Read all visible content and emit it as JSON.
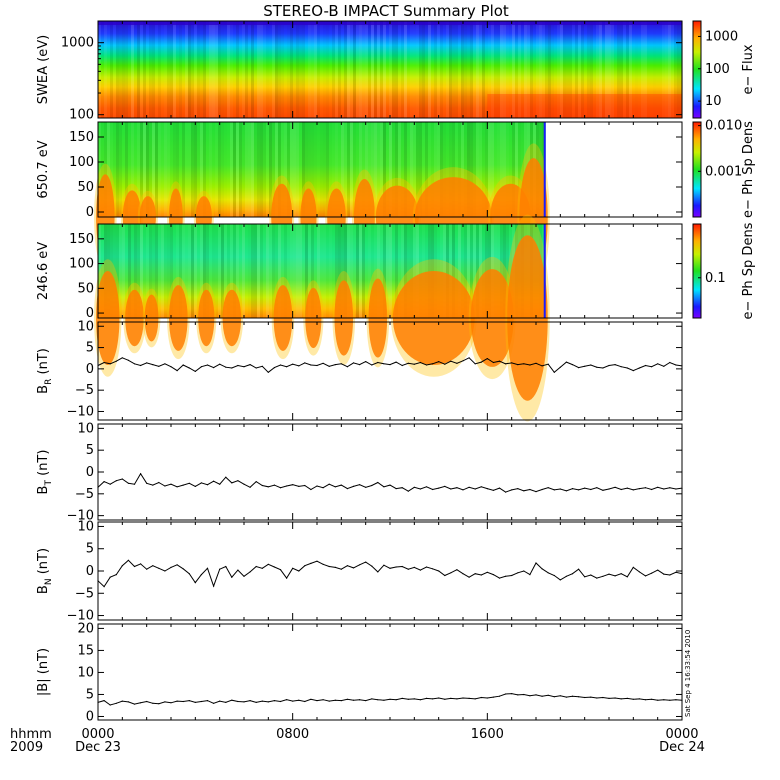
{
  "chart_data": {
    "type": "multi-panel",
    "title": "STEREO-B IMPACT Summary Plot",
    "time_axis": {
      "label_left": [
        "hhmm",
        "2009"
      ],
      "ticks": [
        {
          "hour": 0,
          "top": "0000",
          "bottom": "Dec 23"
        },
        {
          "hour": 8,
          "top": "0800",
          "bottom": ""
        },
        {
          "hour": 16,
          "top": "1600",
          "bottom": ""
        },
        {
          "hour": 24,
          "top": "0000",
          "bottom": "Dec 24"
        }
      ],
      "range_hours": [
        0,
        24
      ],
      "minor_ticks_per_interval": 8
    },
    "vertical_annotation": "Sat Sep  4 16:33:54 2010",
    "spectrograms": [
      {
        "ylabel": "SWEA (eV)",
        "scale": "log",
        "ylim": [
          90,
          2000
        ],
        "yticks": [
          {
            "value": 100,
            "label": "100"
          },
          {
            "value": 1000,
            "label": "1000"
          }
        ],
        "colorbar_label": "e− Flux",
        "colorbar_scale": "log",
        "colorbar_range": [
          3,
          3000
        ],
        "colorbar_ticks": [
          {
            "value": 10,
            "label": "10"
          },
          {
            "value": 100,
            "label": "100"
          },
          {
            "value": 1000,
            "label": "1000"
          }
        ],
        "data_end_hour": 24
      },
      {
        "ylabel": "650.7 eV",
        "scale": "linear",
        "ylim": [
          -10,
          180
        ],
        "yticks": [
          {
            "value": 0,
            "label": "0"
          },
          {
            "value": 50,
            "label": "50"
          },
          {
            "value": 100,
            "label": "100"
          },
          {
            "value": 150,
            "label": "150"
          }
        ],
        "colorbar_label": "e− Ph Sp Dens",
        "colorbar_scale": "log",
        "colorbar_range": [
          0.0001,
          0.012
        ],
        "colorbar_ticks": [
          {
            "value": 0.001,
            "label": "0.001"
          },
          {
            "value": 0.01,
            "label": "0.010"
          }
        ],
        "data_end_hour": 18.4
      },
      {
        "ylabel": "246.6 eV",
        "scale": "linear",
        "ylim": [
          -10,
          180
        ],
        "yticks": [
          {
            "value": 0,
            "label": "0"
          },
          {
            "value": 50,
            "label": "50"
          },
          {
            "value": 100,
            "label": "100"
          },
          {
            "value": 150,
            "label": "150"
          }
        ],
        "colorbar_label": "e− Ph Sp Dens",
        "colorbar_scale": "log",
        "colorbar_range": [
          0.03,
          0.5
        ],
        "colorbar_ticks": [
          {
            "value": 0.1,
            "label": "0.1"
          }
        ],
        "data_end_hour": 18.4
      }
    ],
    "series": [
      {
        "ylabel": "B_R (nT)",
        "ylabel_main": "B",
        "ylabel_sub": "R",
        "ylabel_unit": "(nT)",
        "ylim": [
          -12,
          11
        ],
        "yticks": [
          {
            "value": -10,
            "label": "−10"
          },
          {
            "value": -5,
            "label": "−5"
          },
          {
            "value": 0,
            "label": "0"
          },
          {
            "value": 5,
            "label": "5"
          },
          {
            "value": 10,
            "label": "10"
          }
        ],
        "x": [
          0,
          0.25,
          0.5,
          0.75,
          1,
          1.25,
          1.5,
          1.75,
          2,
          2.25,
          2.5,
          2.75,
          3,
          3.25,
          3.5,
          3.75,
          4,
          4.25,
          4.5,
          4.75,
          5,
          5.25,
          5.5,
          5.75,
          6,
          6.25,
          6.5,
          6.75,
          7,
          7.25,
          7.5,
          7.75,
          8,
          8.25,
          8.5,
          8.75,
          9,
          9.25,
          9.5,
          9.75,
          10,
          10.25,
          10.5,
          10.75,
          11,
          11.25,
          11.5,
          11.75,
          12,
          12.25,
          12.5,
          12.75,
          13,
          13.25,
          13.5,
          13.75,
          14,
          14.25,
          14.5,
          14.75,
          15,
          15.25,
          15.5,
          15.75,
          16,
          16.25,
          16.5,
          16.75,
          17,
          17.25,
          17.5,
          17.75,
          18,
          18.25,
          18.5,
          18.75,
          19,
          19.25,
          19.5,
          19.75,
          20,
          20.25,
          20.5,
          20.75,
          21,
          21.25,
          21.5,
          21.75,
          22,
          22.25,
          22.5,
          22.75,
          23,
          23.25,
          23.5,
          23.75,
          24
        ],
        "values": [
          0.8,
          1.5,
          1.2,
          1.8,
          2.6,
          2.0,
          1.2,
          0.8,
          1.4,
          1.0,
          0.6,
          1.2,
          0.5,
          -0.4,
          0.9,
          0.2,
          -0.6,
          0.5,
          0.9,
          0.3,
          1.1,
          0.4,
          0.2,
          0.8,
          0.5,
          1.0,
          0.2,
          0.6,
          -0.8,
          0.3,
          0.9,
          0.5,
          1.1,
          0.7,
          1.4,
          0.9,
          0.8,
          1.3,
          0.6,
          1.0,
          1.2,
          0.5,
          1.4,
          1.0,
          1.7,
          0.9,
          1.5,
          1.2,
          1.0,
          1.6,
          0.8,
          1.3,
          1.1,
          1.5,
          0.9,
          1.2,
          1.7,
          1.1,
          1.8,
          1.3,
          1.9,
          2.6,
          1.2,
          1.6,
          2.4,
          1.5,
          1.8,
          1.2,
          1.4,
          1.0,
          1.2,
          0.9,
          1.3,
          0.7,
          1.1,
          -0.8,
          0.4,
          1.6,
          1.0,
          0.3,
          0.6,
          0.9,
          0.4,
          0.2,
          0.8,
          1.0,
          0.5,
          0.2,
          -0.4,
          0.2,
          0.8,
          0.5,
          1.2,
          0.6,
          1.5,
          0.9,
          0.7
        ]
      },
      {
        "ylabel": "B_T (nT)",
        "ylabel_main": "B",
        "ylabel_sub": "T",
        "ylabel_unit": "(nT)",
        "ylim": [
          -11,
          11
        ],
        "yticks": [
          {
            "value": -10,
            "label": "−10"
          },
          {
            "value": -5,
            "label": "−5"
          },
          {
            "value": 0,
            "label": "0"
          },
          {
            "value": 5,
            "label": "5"
          },
          {
            "value": 10,
            "label": "10"
          }
        ],
        "x": [
          0,
          0.25,
          0.5,
          0.75,
          1,
          1.25,
          1.5,
          1.75,
          2,
          2.25,
          2.5,
          2.75,
          3,
          3.25,
          3.5,
          3.75,
          4,
          4.25,
          4.5,
          4.75,
          5,
          5.25,
          5.5,
          5.75,
          6,
          6.25,
          6.5,
          6.75,
          7,
          7.25,
          7.5,
          7.75,
          8,
          8.25,
          8.5,
          8.75,
          9,
          9.25,
          9.5,
          9.75,
          10,
          10.25,
          10.5,
          10.75,
          11,
          11.25,
          11.5,
          11.75,
          12,
          12.25,
          12.5,
          12.75,
          13,
          13.25,
          13.5,
          13.75,
          14,
          14.25,
          14.5,
          14.75,
          15,
          15.25,
          15.5,
          15.75,
          16,
          16.25,
          16.5,
          16.75,
          17,
          17.25,
          17.5,
          17.75,
          18,
          18.25,
          18.5,
          18.75,
          19,
          19.25,
          19.5,
          19.75,
          20,
          20.25,
          20.5,
          20.75,
          21,
          21.25,
          21.5,
          21.75,
          22,
          22.25,
          22.5,
          22.75,
          23,
          23.25,
          23.5,
          23.75,
          24
        ],
        "values": [
          -3.5,
          -2.2,
          -2.8,
          -2.0,
          -1.6,
          -2.6,
          -2.8,
          -0.4,
          -2.6,
          -3.0,
          -2.4,
          -3.2,
          -2.8,
          -3.4,
          -3.0,
          -2.6,
          -3.3,
          -2.5,
          -2.9,
          -2.1,
          -2.8,
          -1.2,
          -2.5,
          -2.0,
          -2.8,
          -3.5,
          -2.2,
          -3.1,
          -3.4,
          -3.0,
          -3.6,
          -3.2,
          -2.9,
          -3.3,
          -3.1,
          -4.0,
          -3.2,
          -3.6,
          -2.8,
          -3.4,
          -3.0,
          -3.8,
          -3.3,
          -2.9,
          -3.5,
          -3.1,
          -2.4,
          -3.4,
          -3.0,
          -3.8,
          -3.6,
          -4.4,
          -3.5,
          -3.9,
          -3.4,
          -4.0,
          -3.7,
          -3.3,
          -3.9,
          -3.6,
          -4.1,
          -3.5,
          -3.9,
          -3.4,
          -3.8,
          -4.2,
          -3.7,
          -4.6,
          -4.1,
          -3.8,
          -4.3,
          -4.0,
          -4.5,
          -4.0,
          -3.6,
          -4.1,
          -3.9,
          -4.3,
          -3.8,
          -4.1,
          -3.7,
          -4.0,
          -3.6,
          -4.2,
          -3.9,
          -3.5,
          -4.0,
          -3.7,
          -4.1,
          -3.8,
          -3.6,
          -4.0,
          -3.5,
          -3.9,
          -3.6,
          -3.9,
          -3.7
        ]
      },
      {
        "ylabel": "B_N (nT)",
        "ylabel_main": "B",
        "ylabel_sub": "N",
        "ylabel_unit": "(nT)",
        "ylim": [
          -11,
          11
        ],
        "yticks": [
          {
            "value": -10,
            "label": "−10"
          },
          {
            "value": -5,
            "label": "−5"
          },
          {
            "value": 0,
            "label": "0"
          },
          {
            "value": 5,
            "label": "5"
          },
          {
            "value": 10,
            "label": "10"
          }
        ],
        "x": [
          0,
          0.25,
          0.5,
          0.75,
          1,
          1.25,
          1.5,
          1.75,
          2,
          2.25,
          2.5,
          2.75,
          3,
          3.25,
          3.5,
          3.75,
          4,
          4.25,
          4.5,
          4.75,
          5,
          5.25,
          5.5,
          5.75,
          6,
          6.25,
          6.5,
          6.75,
          7,
          7.25,
          7.5,
          7.75,
          8,
          8.25,
          8.5,
          8.75,
          9,
          9.25,
          9.5,
          9.75,
          10,
          10.25,
          10.5,
          10.75,
          11,
          11.25,
          11.5,
          11.75,
          12,
          12.25,
          12.5,
          12.75,
          13,
          13.25,
          13.5,
          13.75,
          14,
          14.25,
          14.5,
          14.75,
          15,
          15.25,
          15.5,
          15.75,
          16,
          16.25,
          16.5,
          16.75,
          17,
          17.25,
          17.5,
          17.75,
          18,
          18.25,
          18.5,
          18.75,
          19,
          19.25,
          19.5,
          19.75,
          20,
          20.25,
          20.5,
          20.75,
          21,
          21.25,
          21.5,
          21.75,
          22,
          22.25,
          22.5,
          22.75,
          23,
          23.25,
          23.5,
          23.75,
          24
        ],
        "values": [
          -2.2,
          -3.5,
          -1.4,
          -0.8,
          1.2,
          2.4,
          1.0,
          1.6,
          0.4,
          1.2,
          0.6,
          0.0,
          0.8,
          1.4,
          0.5,
          -0.6,
          -2.6,
          -0.8,
          0.6,
          -3.4,
          0.4,
          1.0,
          -1.4,
          0.2,
          -1.2,
          -0.2,
          1.0,
          0.6,
          1.5,
          0.9,
          0.3,
          -1.6,
          0.6,
          0.0,
          1.2,
          1.7,
          2.2,
          1.5,
          1.0,
          0.8,
          0.4,
          1.2,
          0.7,
          1.4,
          2.0,
          1.1,
          -0.2,
          1.3,
          0.6,
          0.9,
          1.0,
          0.4,
          0.8,
          0.2,
          0.9,
          0.5,
          0.0,
          -1.0,
          -0.4,
          0.3,
          -0.6,
          -1.4,
          -0.6,
          -0.9,
          -0.3,
          -0.8,
          -1.6,
          -1.2,
          -1.0,
          -0.4,
          0.0,
          -0.8,
          1.8,
          0.5,
          -0.4,
          -1.0,
          -2.0,
          -1.2,
          -0.6,
          0.4,
          -1.3,
          -0.9,
          -1.6,
          -1.2,
          -0.7,
          -1.1,
          -0.6,
          -1.3,
          0.8,
          -0.2,
          -1.1,
          -0.5,
          0.2,
          -0.7,
          -0.9,
          -0.3,
          -0.6
        ]
      },
      {
        "ylabel": "|B| (nT)",
        "ylabel_main": "|B|",
        "ylabel_sub": "",
        "ylabel_unit": "(nT)",
        "ylim": [
          -0.8,
          21
        ],
        "yticks": [
          {
            "value": 0,
            "label": "0"
          },
          {
            "value": 5,
            "label": "5"
          },
          {
            "value": 10,
            "label": "10"
          },
          {
            "value": 15,
            "label": "15"
          },
          {
            "value": 20,
            "label": "20"
          }
        ],
        "x": [
          0,
          0.25,
          0.5,
          0.75,
          1,
          1.25,
          1.5,
          1.75,
          2,
          2.25,
          2.5,
          2.75,
          3,
          3.25,
          3.5,
          3.75,
          4,
          4.25,
          4.5,
          4.75,
          5,
          5.25,
          5.5,
          5.75,
          6,
          6.25,
          6.5,
          6.75,
          7,
          7.25,
          7.5,
          7.75,
          8,
          8.25,
          8.5,
          8.75,
          9,
          9.25,
          9.5,
          9.75,
          10,
          10.25,
          10.5,
          10.75,
          11,
          11.25,
          11.5,
          11.75,
          12,
          12.25,
          12.5,
          12.75,
          13,
          13.25,
          13.5,
          13.75,
          14,
          14.25,
          14.5,
          14.75,
          15,
          15.25,
          15.5,
          15.75,
          16,
          16.25,
          16.5,
          16.75,
          17,
          17.25,
          17.5,
          17.75,
          18,
          18.25,
          18.5,
          18.75,
          19,
          19.25,
          19.5,
          19.75,
          20,
          20.25,
          20.5,
          20.75,
          21,
          21.25,
          21.5,
          21.75,
          22,
          22.25,
          22.5,
          22.75,
          23,
          23.25,
          23.5,
          23.75,
          24
        ],
        "values": [
          3.2,
          3.6,
          2.6,
          3.0,
          3.5,
          3.3,
          2.8,
          3.1,
          3.4,
          3.0,
          2.9,
          3.3,
          3.1,
          3.5,
          3.4,
          3.6,
          3.2,
          3.4,
          3.6,
          3.0,
          3.5,
          3.2,
          3.7,
          3.4,
          3.3,
          3.6,
          3.2,
          3.5,
          3.3,
          3.6,
          3.4,
          3.8,
          3.5,
          3.7,
          3.4,
          3.9,
          3.6,
          3.8,
          3.5,
          3.7,
          3.6,
          3.9,
          3.7,
          3.8,
          3.6,
          4.0,
          3.8,
          3.7,
          3.9,
          3.8,
          4.1,
          3.9,
          4.0,
          3.8,
          4.1,
          4.0,
          4.2,
          3.9,
          4.1,
          4.0,
          4.2,
          4.1,
          4.0,
          4.3,
          4.2,
          4.4,
          4.6,
          5.1,
          5.2,
          4.9,
          5.0,
          4.7,
          4.9,
          4.6,
          4.8,
          4.5,
          4.7,
          4.4,
          4.6,
          4.5,
          4.3,
          4.4,
          4.2,
          4.3,
          4.1,
          4.2,
          4.0,
          4.1,
          3.9,
          4.0,
          3.8,
          3.9,
          3.7,
          3.8,
          3.7,
          3.8,
          3.7
        ]
      }
    ]
  }
}
